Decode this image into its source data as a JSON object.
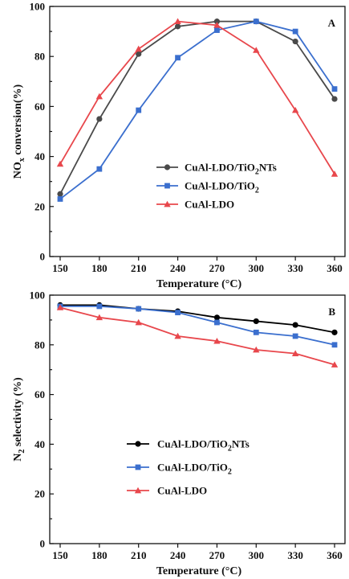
{
  "chart_data": [
    {
      "type": "line",
      "panel_label": "A",
      "ylabel_main": "NO",
      "ylabel_sub": "x",
      "ylabel_rest": " conversion(%)",
      "xlabel": "Temperature (°C)",
      "x": [
        150,
        180,
        210,
        240,
        270,
        300,
        330,
        360
      ],
      "ylim": [
        0,
        100
      ],
      "yticks": [
        0,
        20,
        40,
        60,
        80,
        100
      ],
      "legend_position": "center-right",
      "series": [
        {
          "name": "CuAl-LDO/TiO2NTs",
          "name_parts": [
            "CuAl-LDO/TiO",
            "2",
            "NTs"
          ],
          "color": "#4a4a4a",
          "marker": "circle",
          "values": [
            25,
            55,
            81,
            92,
            94,
            94,
            86,
            63
          ]
        },
        {
          "name": "CuAl-LDO/TiO2",
          "name_parts": [
            "CuAl-LDO/TiO",
            "2",
            ""
          ],
          "color": "#3b6fce",
          "marker": "square",
          "values": [
            23,
            35,
            58.5,
            79.5,
            90.5,
            94,
            90,
            67
          ]
        },
        {
          "name": "CuAl-LDO",
          "name_parts": [
            "CuAl-LDO",
            "",
            ""
          ],
          "color": "#e8474c",
          "marker": "triangle",
          "values": [
            37,
            64,
            83,
            94,
            92.5,
            82.5,
            58.5,
            33
          ]
        }
      ]
    },
    {
      "type": "line",
      "panel_label": "B",
      "ylabel_main": "N",
      "ylabel_sub": "2",
      "ylabel_rest": " selectivity (%)",
      "xlabel": "Temperature (°C)",
      "x": [
        150,
        180,
        210,
        240,
        270,
        300,
        330,
        360
      ],
      "ylim": [
        0,
        100
      ],
      "yticks": [
        0,
        20,
        40,
        60,
        80,
        100
      ],
      "legend_position": "center-left",
      "series": [
        {
          "name": "CuAl-LDO/TiO2NTs",
          "name_parts": [
            "CuAl-LDO/TiO",
            "2",
            "NTs"
          ],
          "color": "#000000",
          "marker": "circle",
          "values": [
            96,
            96,
            94.5,
            93.5,
            91,
            89.5,
            88,
            85
          ]
        },
        {
          "name": "CuAl-LDO/TiO2",
          "name_parts": [
            "CuAl-LDO/TiO",
            "2",
            ""
          ],
          "color": "#3b6fce",
          "marker": "square",
          "values": [
            95.5,
            95.5,
            94.5,
            93,
            89,
            85,
            83.5,
            80
          ]
        },
        {
          "name": "CuAl-LDO",
          "name_parts": [
            "CuAl-LDO",
            "",
            ""
          ],
          "color": "#e8474c",
          "marker": "triangle",
          "values": [
            95,
            91,
            89,
            83.5,
            81.5,
            78,
            76.5,
            72
          ]
        }
      ]
    }
  ]
}
